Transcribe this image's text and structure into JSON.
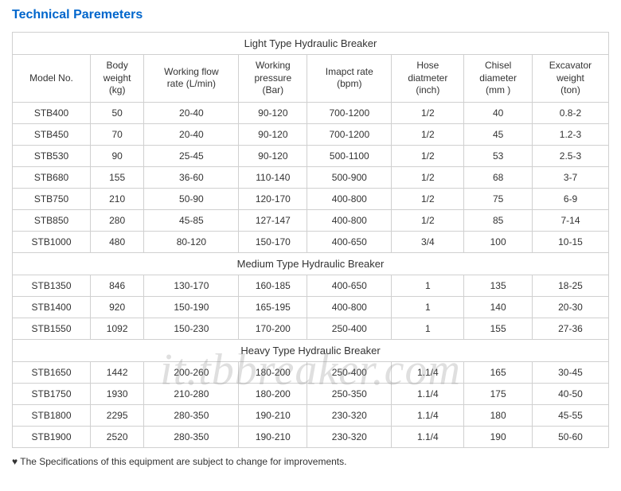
{
  "title": "Technical Paremeters",
  "table": {
    "columns": [
      "Model No.",
      "Body weight (kg)",
      "Working flow rate (L/min)",
      "Working pressure (Bar)",
      "Imapct rate (bpm)",
      "Hose diatmeter (inch)",
      "Chisel diameter (mm )",
      "Excavator weight (ton)"
    ],
    "column_count": 8,
    "border_color": "#d0d0d0",
    "text_color": "#333333",
    "header_fontsize": 12,
    "cell_fontsize": 12,
    "section_fontsize": 13,
    "sections": [
      {
        "label": "Light Type Hydraulic Breaker",
        "rows": [
          [
            "STB400",
            "50",
            "20-40",
            "90-120",
            "700-1200",
            "1/2",
            "40",
            "0.8-2"
          ],
          [
            "STB450",
            "70",
            "20-40",
            "90-120",
            "700-1200",
            "1/2",
            "45",
            "1.2-3"
          ],
          [
            "STB530",
            "90",
            "25-45",
            "90-120",
            "500-1100",
            "1/2",
            "53",
            "2.5-3"
          ],
          [
            "STB680",
            "155",
            "36-60",
            "110-140",
            "500-900",
            "1/2",
            "68",
            "3-7"
          ],
          [
            "STB750",
            "210",
            "50-90",
            "120-170",
            "400-800",
            "1/2",
            "75",
            "6-9"
          ],
          [
            "STB850",
            "280",
            "45-85",
            "127-147",
            "400-800",
            "1/2",
            "85",
            "7-14"
          ],
          [
            "STB1000",
            "480",
            "80-120",
            "150-170",
            "400-650",
            "3/4",
            "100",
            "10-15"
          ]
        ]
      },
      {
        "label": "Medium Type Hydraulic Breaker",
        "rows": [
          [
            "STB1350",
            "846",
            "130-170",
            "160-185",
            "400-650",
            "1",
            "135",
            "18-25"
          ],
          [
            "STB1400",
            "920",
            "150-190",
            "165-195",
            "400-800",
            "1",
            "140",
            "20-30"
          ],
          [
            "STB1550",
            "1092",
            "150-230",
            "170-200",
            "250-400",
            "1",
            "155",
            "27-36"
          ]
        ]
      },
      {
        "label": "Heavy Type Hydraulic Breaker",
        "rows": [
          [
            "STB1650",
            "1442",
            "200-260",
            "180-200",
            "250-400",
            "1.1/4",
            "165",
            "30-45"
          ],
          [
            "STB1750",
            "1930",
            "210-280",
            "180-200",
            "250-350",
            "1.1/4",
            "175",
            "40-50"
          ],
          [
            "STB1800",
            "2295",
            "280-350",
            "190-210",
            "230-320",
            "1.1/4",
            "180",
            "45-55"
          ],
          [
            "STB1900",
            "2520",
            "280-350",
            "190-210",
            "230-320",
            "1.1/4",
            "190",
            "50-60"
          ]
        ]
      }
    ]
  },
  "footnote": "♥ The Specifications of this equipment are subject to change for improvements.",
  "watermark": "it.tbbreaker.com",
  "colors": {
    "title": "#0066cc",
    "background": "#ffffff",
    "watermark": "rgba(140,140,140,0.28)"
  }
}
